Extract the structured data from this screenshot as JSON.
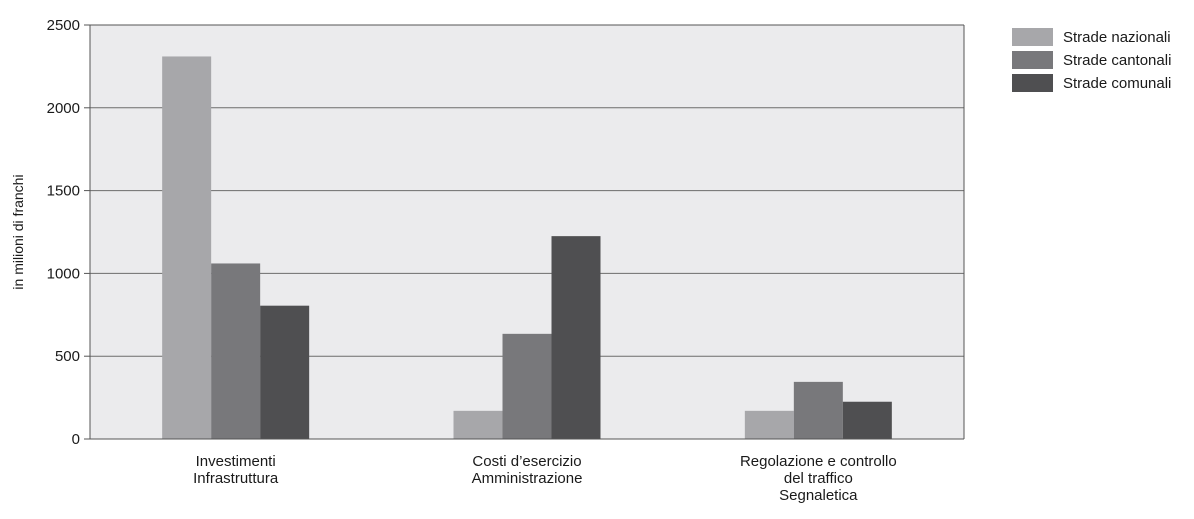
{
  "chart_data": {
    "type": "bar",
    "title": "",
    "xlabel": "",
    "ylabel": "in milioni di franchi",
    "ylim": [
      0,
      2500
    ],
    "yticks": [
      0,
      500,
      1000,
      1500,
      2000,
      2500
    ],
    "grid": true,
    "legend_position": "top-right",
    "categories": [
      [
        "Investimenti",
        "Infrastruttura"
      ],
      [
        "Costi d’esercizio",
        "Amministrazione"
      ],
      [
        "Regolazione e controllo",
        "del traffico",
        "Segnaletica"
      ]
    ],
    "series": [
      {
        "name": "Strade nazionali",
        "color": "#a7a7aa",
        "values": [
          2310,
          170,
          170
        ]
      },
      {
        "name": "Strade cantonali",
        "color": "#78787b",
        "values": [
          1060,
          635,
          345
        ]
      },
      {
        "name": "Strade comunali",
        "color": "#4f4f51",
        "values": [
          805,
          1225,
          225
        ]
      }
    ],
    "plot_background": "#ebebed",
    "gridline_color": "#6c6c6c"
  }
}
